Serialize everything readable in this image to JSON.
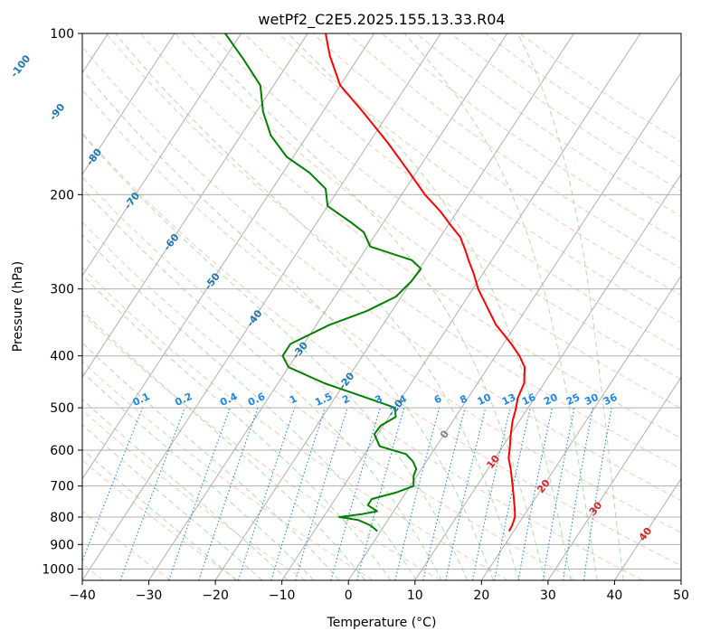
{
  "chart_data": {
    "type": "line",
    "subtype": "skew-t log-p diagram",
    "title": "wetPf2_C2E5.2025.155.13.33.R04",
    "xlabel": "Temperature (°C)",
    "ylabel": "Pressure (hPa)",
    "xlim": [
      -40,
      50
    ],
    "ylim": [
      1050,
      100
    ],
    "y_scale": "log",
    "x_ticks": [
      -40,
      -30,
      -20,
      -10,
      0,
      10,
      20,
      30,
      40,
      50
    ],
    "y_ticks": [
      1000,
      900,
      800,
      700,
      600,
      500,
      400,
      300,
      200,
      100
    ],
    "grid": true,
    "series": [
      {
        "color": "#ff0000",
        "points": [
          [
            850,
            19.3
          ],
          [
            830,
            19.2
          ],
          [
            800,
            18.8
          ],
          [
            780,
            18.2
          ],
          [
            750,
            17.2
          ],
          [
            700,
            15.4
          ],
          [
            650,
            13.4
          ],
          [
            620,
            12.0
          ],
          [
            600,
            11.4
          ],
          [
            560,
            10.0
          ],
          [
            530,
            9.0
          ],
          [
            500,
            8.2
          ],
          [
            480,
            7.5
          ],
          [
            450,
            7.0
          ],
          [
            420,
            5.5
          ],
          [
            400,
            3.6
          ],
          [
            380,
            1.2
          ],
          [
            350,
            -3.0
          ],
          [
            320,
            -6.6
          ],
          [
            300,
            -9.2
          ],
          [
            280,
            -11.5
          ],
          [
            265,
            -13.5
          ],
          [
            255,
            -14.8
          ],
          [
            240,
            -17.0
          ],
          [
            230,
            -19.2
          ],
          [
            215,
            -22.5
          ],
          [
            200,
            -26.5
          ],
          [
            180,
            -31.5
          ],
          [
            160,
            -37.2
          ],
          [
            140,
            -44.0
          ],
          [
            125,
            -50.0
          ],
          [
            110,
            -54.5
          ],
          [
            100,
            -57.3
          ]
        ]
      },
      {
        "color": "#008000",
        "points": [
          [
            850,
            -0.5
          ],
          [
            830,
            -2.0
          ],
          [
            810,
            -4.5
          ],
          [
            800,
            -7.6
          ],
          [
            790,
            -4.5
          ],
          [
            780,
            -2.5
          ],
          [
            760,
            -4.5
          ],
          [
            740,
            -4.5
          ],
          [
            720,
            -1.5
          ],
          [
            700,
            0.5
          ],
          [
            670,
            -0.5
          ],
          [
            650,
            -0.8
          ],
          [
            630,
            -2.0
          ],
          [
            610,
            -3.8
          ],
          [
            590,
            -8.5
          ],
          [
            560,
            -10.5
          ],
          [
            540,
            -10.4
          ],
          [
            520,
            -9.0
          ],
          [
            500,
            -10.0
          ],
          [
            480,
            -15.0
          ],
          [
            450,
            -23.0
          ],
          [
            420,
            -30.0
          ],
          [
            400,
            -32.0
          ],
          [
            380,
            -32.0
          ],
          [
            350,
            -28.0
          ],
          [
            330,
            -23.8
          ],
          [
            310,
            -20.8
          ],
          [
            290,
            -20.0
          ],
          [
            275,
            -19.8
          ],
          [
            265,
            -22.0
          ],
          [
            250,
            -29.6
          ],
          [
            235,
            -32.0
          ],
          [
            225,
            -35.0
          ],
          [
            210,
            -40.0
          ],
          [
            195,
            -42.0
          ],
          [
            182,
            -46.0
          ],
          [
            170,
            -51.0
          ],
          [
            155,
            -55.5
          ],
          [
            140,
            -59.0
          ],
          [
            125,
            -62.0
          ],
          [
            112,
            -67.0
          ],
          [
            100,
            -72.4
          ]
        ]
      }
    ],
    "isotherm_labels": [
      "-100",
      "-90",
      "-80",
      "-70",
      "-60",
      "-50",
      "-40",
      "-30",
      "-20",
      "-10",
      "0",
      "10",
      "20",
      "30",
      "40"
    ],
    "mixing_ratio_labels": [
      "0.1",
      "0.2",
      "0.4",
      "0.6",
      "1",
      "1.5",
      "2",
      "3",
      "4",
      "6",
      "8",
      "10",
      "13",
      "16",
      "20",
      "25",
      "30",
      "36"
    ],
    "colors": {
      "temperature": "#ff0000",
      "dewpoint": "#008000",
      "isotherm_grid": "#b0b0b0",
      "dry_adiabat": "#f4a582",
      "moist_adiabat": "#8fcf8f",
      "mixing_ratio": "#1e88e5",
      "isotherm_label_cold": "#1f77b4",
      "isotherm_label_warm": "#d62728",
      "isotherm_label_zero": "#808080"
    }
  }
}
